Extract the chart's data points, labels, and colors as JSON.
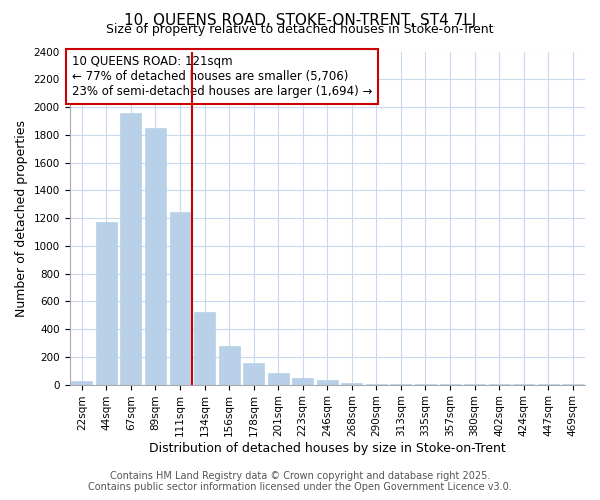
{
  "title1": "10, QUEENS ROAD, STOKE-ON-TRENT, ST4 7LJ",
  "title2": "Size of property relative to detached houses in Stoke-on-Trent",
  "xlabel": "Distribution of detached houses by size in Stoke-on-Trent",
  "ylabel": "Number of detached properties",
  "categories": [
    "22sqm",
    "44sqm",
    "67sqm",
    "89sqm",
    "111sqm",
    "134sqm",
    "156sqm",
    "178sqm",
    "201sqm",
    "223sqm",
    "246sqm",
    "268sqm",
    "290sqm",
    "313sqm",
    "335sqm",
    "357sqm",
    "380sqm",
    "402sqm",
    "424sqm",
    "447sqm",
    "469sqm"
  ],
  "values": [
    25,
    1170,
    1960,
    1850,
    1240,
    520,
    275,
    155,
    85,
    45,
    35,
    10,
    5,
    3,
    2,
    1,
    1,
    1,
    1,
    1,
    1
  ],
  "bar_color": "#b8d0e8",
  "bar_edge_color": "#b8d0e8",
  "vline_x": 4.5,
  "vline_color": "#cc0000",
  "annotation_line1": "10 QUEENS ROAD: 121sqm",
  "annotation_line2": "← 77% of detached houses are smaller (5,706)",
  "annotation_line3": "23% of semi-detached houses are larger (1,694) →",
  "annotation_box_color": "#cc0000",
  "ylim": [
    0,
    2400
  ],
  "yticks": [
    0,
    200,
    400,
    600,
    800,
    1000,
    1200,
    1400,
    1600,
    1800,
    2000,
    2200,
    2400
  ],
  "bg_color": "#ffffff",
  "plot_bg_color": "#ffffff",
  "grid_color": "#c8d8ee",
  "footer1": "Contains HM Land Registry data © Crown copyright and database right 2025.",
  "footer2": "Contains public sector information licensed under the Open Government Licence v3.0.",
  "title_fontsize": 11,
  "subtitle_fontsize": 9,
  "axis_label_fontsize": 9,
  "tick_fontsize": 7.5,
  "annotation_fontsize": 8.5,
  "footer_fontsize": 7
}
